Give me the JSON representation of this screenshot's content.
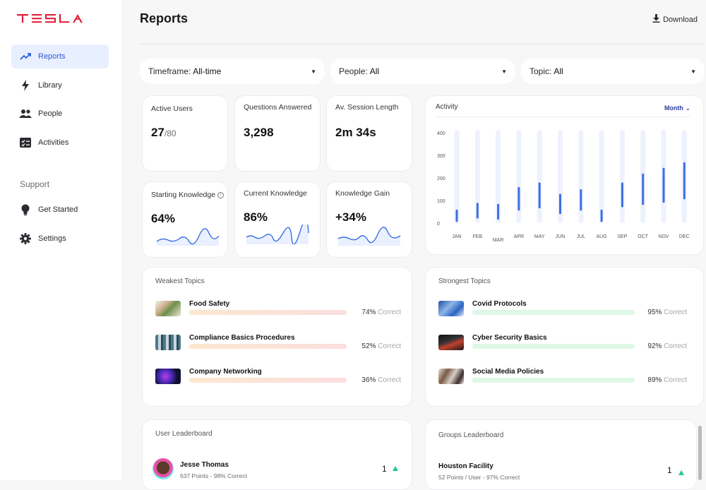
{
  "brand": "TESLA",
  "sidebar": {
    "items": [
      {
        "label": "Reports"
      },
      {
        "label": "Library"
      },
      {
        "label": "People"
      },
      {
        "label": "Activities"
      }
    ],
    "support_label": "Support",
    "support_items": [
      {
        "label": "Get Started"
      },
      {
        "label": "Settings"
      }
    ]
  },
  "header": {
    "title": "Reports",
    "download_label": "Download"
  },
  "filters": [
    {
      "label": "Timeframe:",
      "value": "All-time"
    },
    {
      "label": "People:",
      "value": "All"
    },
    {
      "label": "Topic:",
      "value": "All"
    }
  ],
  "stats": {
    "active_users": {
      "label": "Active Users",
      "value": "27",
      "total": "/80"
    },
    "questions": {
      "label": "Questions Answered",
      "value": "3,298"
    },
    "session": {
      "label": "Av. Session Length",
      "value": "2m 34s"
    },
    "starting": {
      "label": "Starting Knowledge",
      "value": "64%"
    },
    "current": {
      "label": "Current Knowledge",
      "value": "86%"
    },
    "gain": {
      "label": "Knowledge Gain",
      "value": "+34%"
    }
  },
  "activity": {
    "title": "Activity",
    "period": "Month"
  },
  "chart_data": {
    "type": "bar",
    "title": "Activity",
    "categories": [
      "JAN",
      "FEB",
      "MAR",
      "APR",
      "MAY",
      "JUN",
      "JUL",
      "AUG",
      "SEP",
      "OCT",
      "NOV",
      "DEC"
    ],
    "ranges": [
      [
        5,
        60
      ],
      [
        20,
        90
      ],
      [
        15,
        85
      ],
      [
        55,
        160
      ],
      [
        65,
        180
      ],
      [
        40,
        130
      ],
      [
        55,
        150
      ],
      [
        5,
        60
      ],
      [
        70,
        180
      ],
      [
        80,
        220
      ],
      [
        90,
        245
      ],
      [
        105,
        270
      ]
    ],
    "ylim": [
      0,
      400
    ],
    "yticks": [
      "400",
      "300",
      "200",
      "100",
      "0"
    ],
    "track_color": "#eef2ff",
    "bar_color": "#3b6fe0"
  },
  "weakest": {
    "title": "Weakest Topics",
    "items": [
      {
        "name": "Food Safety",
        "pct": "74%",
        "correct": "Correct"
      },
      {
        "name": "Compliance Basics Procedures",
        "pct": "52%",
        "correct": "Correct"
      },
      {
        "name": "Company Networking",
        "pct": "36%",
        "correct": "Correct"
      }
    ]
  },
  "strongest": {
    "title": "Strongest Topics",
    "items": [
      {
        "name": "Covid Protocols",
        "pct": "95%",
        "correct": "Correct"
      },
      {
        "name": "Cyber Security Basics",
        "pct": "92%",
        "correct": "Correct"
      },
      {
        "name": "Social Media Policies",
        "pct": "89%",
        "correct": "Correct"
      }
    ]
  },
  "user_leaderboard": {
    "title": "User Leaderboard",
    "name": "Jesse Thomas",
    "sub": "637 Points - 98% Correct",
    "rank": "1"
  },
  "groups_leaderboard": {
    "title": "Groups Leaderboard",
    "name": "Houston Facility",
    "sub": "52 Points / User - 97% Correct",
    "rank": "1"
  }
}
